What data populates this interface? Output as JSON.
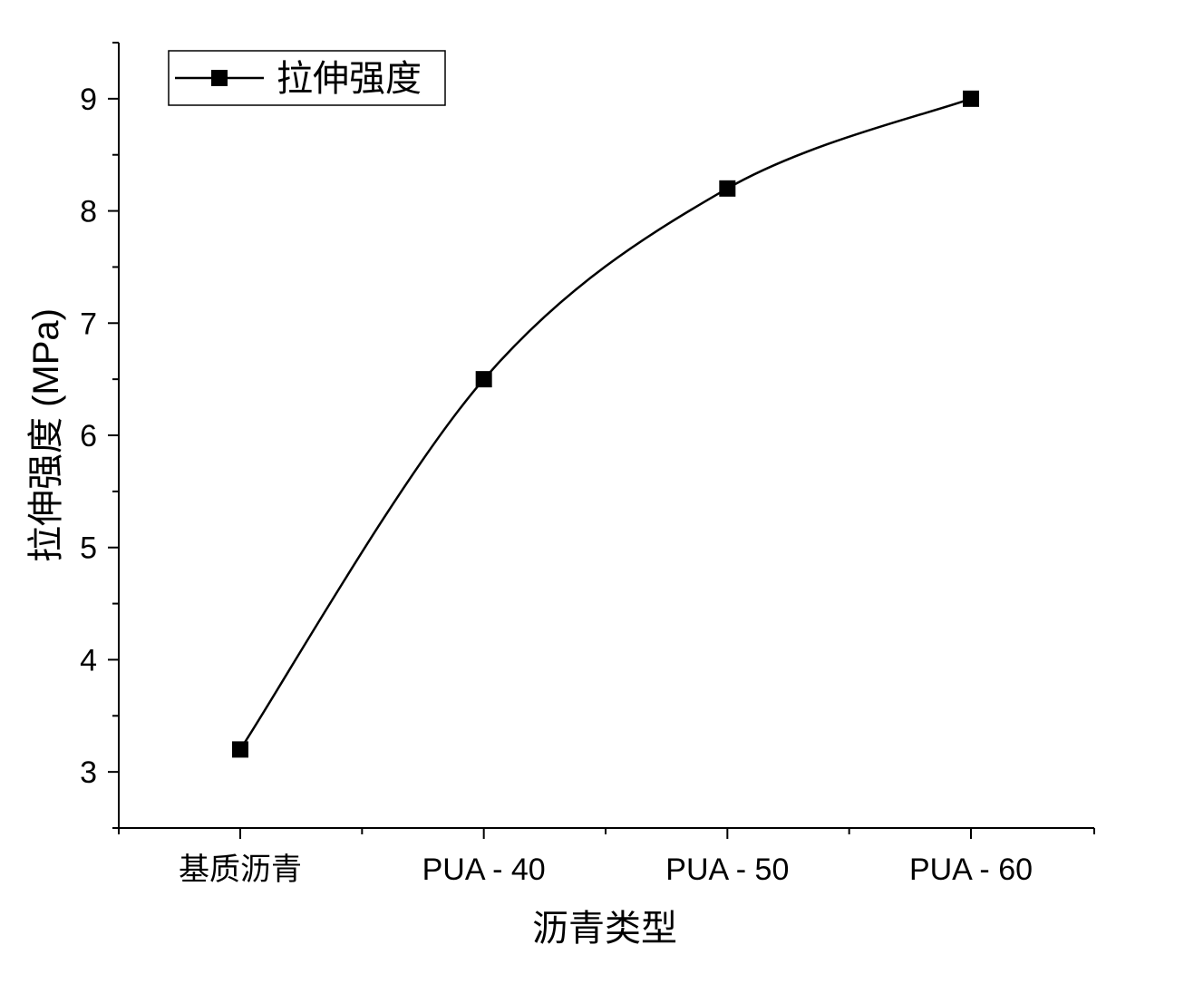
{
  "chart_data": {
    "type": "line",
    "categories": [
      "基质沥青",
      "PUA - 40",
      "PUA - 50",
      "PUA - 60"
    ],
    "series": [
      {
        "name": "拉伸强度",
        "values": [
          3.2,
          6.5,
          8.2,
          9.0
        ],
        "color": "#000000",
        "marker": "square"
      }
    ],
    "xlabel": "沥青类型",
    "ylabel": "拉伸强度 (MPa)",
    "ylim": [
      2.5,
      9.5
    ],
    "yticks": [
      3,
      4,
      5,
      6,
      7,
      8,
      9
    ],
    "grid": false,
    "legend_position": "top-left",
    "smooth": true
  }
}
